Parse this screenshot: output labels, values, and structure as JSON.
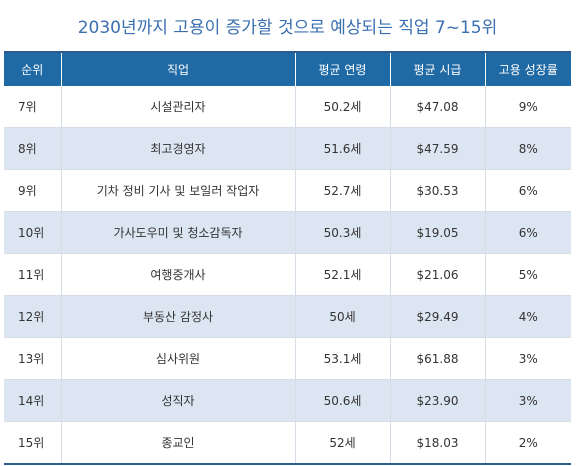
{
  "title": "2030년까지 고용이 증가할 것으로 예상되는 직업 7~15위",
  "table": {
    "headers": [
      "순위",
      "직업",
      "평균 연령",
      "평균 시급",
      "고용 성장률"
    ],
    "rows": [
      {
        "rank": "7위",
        "job": "시설관리자",
        "age": "50.2세",
        "wage": "$47.08",
        "growth": "9%"
      },
      {
        "rank": "8위",
        "job": "최고경영자",
        "age": "51.6세",
        "wage": "$47.59",
        "growth": "8%"
      },
      {
        "rank": "9위",
        "job": "기차 정비 기사 및 보일러 작업자",
        "age": "52.7세",
        "wage": "$30.53",
        "growth": "6%"
      },
      {
        "rank": "10위",
        "job": "가사도우미 및 청소감독자",
        "age": "50.3세",
        "wage": "$19.05",
        "growth": "6%"
      },
      {
        "rank": "11위",
        "job": "여행중개사",
        "age": "52.1세",
        "wage": "$21.06",
        "growth": "5%"
      },
      {
        "rank": "12위",
        "job": "부동산 감정사",
        "age": "50세",
        "wage": "$29.49",
        "growth": "4%"
      },
      {
        "rank": "13위",
        "job": "심사위원",
        "age": "53.1세",
        "wage": "$61.88",
        "growth": "3%"
      },
      {
        "rank": "14위",
        "job": "성직자",
        "age": "50.6세",
        "wage": "$23.90",
        "growth": "3%"
      },
      {
        "rank": "15위",
        "job": "종교인",
        "age": "52세",
        "wage": "$18.03",
        "growth": "2%"
      }
    ]
  },
  "colors": {
    "title_text": "#3a6fb0",
    "header_bg": "#1f6aa5",
    "stripe_bg": "#dce6f2",
    "rule": "#2f5a8e"
  }
}
